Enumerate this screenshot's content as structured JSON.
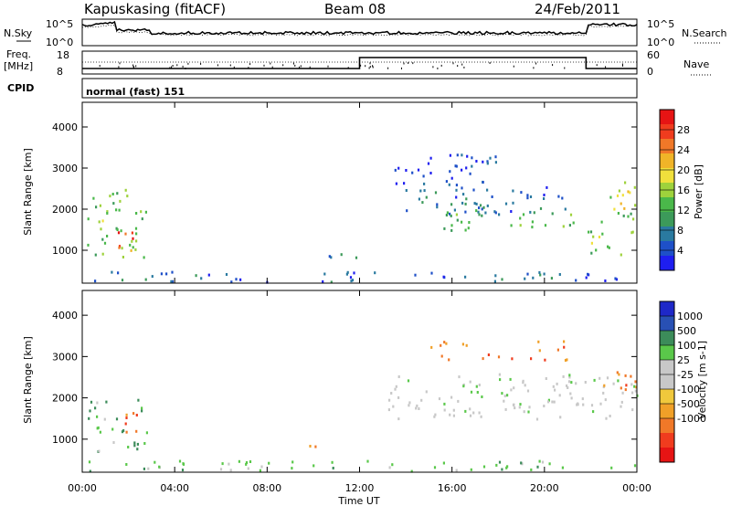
{
  "header": {
    "radar": "Kapuskasing (fitACF)",
    "beam": "Beam 08",
    "date": "24/Feb/2011"
  },
  "noise_panel": {
    "left_label": "N.Sky",
    "right_label": "N.Search",
    "left_ticks": [
      "10^5",
      "10^0"
    ],
    "right_ticks": [
      "10^5",
      "10^0"
    ]
  },
  "freq_panel": {
    "left_label_1": "Freq.",
    "left_label_2": "[MHz]",
    "left_ticks": [
      "18",
      "8"
    ],
    "right_label": "Nave",
    "right_ticks": [
      "60",
      "0"
    ]
  },
  "cpid": {
    "label": "CPID",
    "mode": "normal (fast) 151"
  },
  "colors": {
    "power": [
      "#1e1ef0",
      "#1e50c8",
      "#2a7aa0",
      "#3c9a5a",
      "#4ab84a",
      "#9ed23c",
      "#f0e03c",
      "#f0b428",
      "#f07828",
      "#f03c1e",
      "#e61414"
    ],
    "velocity": [
      "#1e28c8",
      "#2850b4",
      "#3c8c5a",
      "#5ac84a",
      "#c8c8c8",
      "#c8c8c8",
      "#f0c83c",
      "#f0a028",
      "#f07828",
      "#f03c1e",
      "#e61414"
    ]
  },
  "chart_data": [
    {
      "type": "heatmap",
      "name": "Power",
      "ylabel": "Slant Range [km]",
      "ylim": [
        200,
        4600
      ],
      "yticks": [
        "1000",
        "2000",
        "3000",
        "4000"
      ],
      "ytick_values": [
        1000,
        2000,
        3000,
        4000
      ],
      "xlim": [
        0,
        24
      ],
      "colorbar_label": "Power [dB]",
      "colorbar_range": [
        0,
        32
      ],
      "colorbar_ticks": [
        "4",
        "8",
        "12",
        "16",
        "20",
        "24",
        "28"
      ],
      "colorbar_tick_values": [
        4,
        8,
        12,
        16,
        20,
        24,
        28
      ],
      "regions": [
        {
          "t0": 0.2,
          "t1": 2.8,
          "r0": 700,
          "r1": 2500,
          "v": 14
        },
        {
          "t0": 1.1,
          "t1": 2.2,
          "r0": 850,
          "r1": 1500,
          "v": 26
        },
        {
          "t0": 0.2,
          "t1": 24,
          "r0": 250,
          "r1": 500,
          "v": 6
        },
        {
          "t0": 9.8,
          "t1": 12.2,
          "r0": 850,
          "r1": 950,
          "v": 9
        },
        {
          "t0": 13.2,
          "t1": 18,
          "r0": 1900,
          "r1": 2500,
          "v": 6
        },
        {
          "t0": 13.5,
          "t1": 18,
          "r0": 2600,
          "r1": 3400,
          "v": 4
        },
        {
          "t0": 15.5,
          "t1": 21.5,
          "r0": 1500,
          "r1": 2000,
          "v": 12
        },
        {
          "t0": 16,
          "t1": 21,
          "r0": 1900,
          "r1": 2600,
          "v": 6
        },
        {
          "t0": 21.8,
          "t1": 24,
          "r0": 900,
          "r1": 2000,
          "v": 14
        },
        {
          "t0": 22.5,
          "t1": 24,
          "r0": 2000,
          "r1": 2700,
          "v": 18
        }
      ]
    },
    {
      "type": "heatmap",
      "name": "Velocity",
      "ylabel": "Slant Range [km]",
      "ylim": [
        200,
        4600
      ],
      "yticks": [
        "1000",
        "2000",
        "3000",
        "4000"
      ],
      "ytick_values": [
        1000,
        2000,
        3000,
        4000
      ],
      "xlim": [
        0,
        24
      ],
      "xlabel": "Time UT",
      "xticks": [
        "00:00",
        "04:00",
        "08:00",
        "12:00",
        "16:00",
        "20:00",
        "00:00"
      ],
      "xtick_values": [
        0,
        4,
        8,
        12,
        16,
        20,
        24
      ],
      "colorbar_label": "Velocity [m s-1]",
      "colorbar_ticks": [
        "1000",
        "500",
        "100",
        "25",
        "-25",
        "-100",
        "-500",
        "-1000"
      ],
      "colorbar_tick_fracs": [
        0.0909,
        0.1818,
        0.2727,
        0.3636,
        0.4545,
        0.5455,
        0.6364,
        0.7273
      ],
      "regions": [
        {
          "t0": 0.2,
          "t1": 2.8,
          "r0": 700,
          "r1": 2000,
          "c": 3
        },
        {
          "t0": 1.2,
          "t1": 2.6,
          "r0": 1200,
          "r1": 1800,
          "c": 8
        },
        {
          "t0": 0.2,
          "t1": 24,
          "r0": 250,
          "r1": 500,
          "c": 3
        },
        {
          "t0": 9.8,
          "t1": 12.2,
          "r0": 850,
          "r1": 950,
          "c": 7
        },
        {
          "t0": 13.2,
          "t1": 24,
          "r0": 1500,
          "r1": 2600,
          "c": 4
        },
        {
          "t0": 22.5,
          "t1": 24,
          "r0": 2100,
          "r1": 2700,
          "c": 8
        },
        {
          "t0": 15,
          "t1": 21,
          "r0": 2900,
          "r1": 3400,
          "c": 8
        }
      ]
    }
  ]
}
